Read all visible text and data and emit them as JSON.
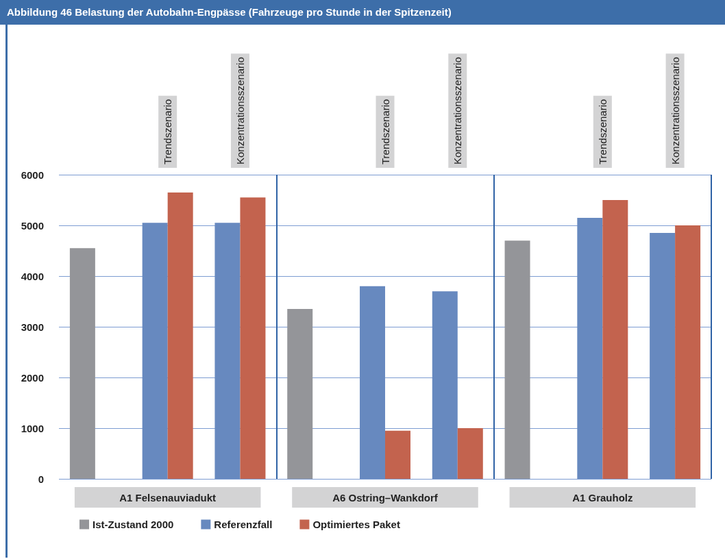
{
  "chart_data": {
    "type": "bar",
    "title": "Abbildung 46  Belastung der Autobahn-Engpässe (Fahrzeuge pro Stunde in der Spitzenzeit)",
    "categories": [
      null,
      "Trendszenario",
      "Konzentrationsszenario",
      null,
      "Trendszenario",
      "Konzentrationsszenario",
      null,
      "Trendszenario",
      "Konzentrationsszenario"
    ],
    "series": [
      {
        "name": "Ist-Zustand 2000",
        "color": "#949599",
        "values": [
          4550,
          null,
          null,
          3350,
          null,
          null,
          4700,
          null,
          null
        ]
      },
      {
        "name": "Referenzfall",
        "color": "#6789bf",
        "values": [
          null,
          5050,
          5050,
          null,
          3800,
          3700,
          null,
          5150,
          4850
        ]
      },
      {
        "name": "Optimiertes Paket",
        "color": "#c3634e",
        "values": [
          null,
          5650,
          5550,
          null,
          950,
          1000,
          null,
          5500,
          5000
        ]
      }
    ],
    "annotations": [
      "A1 Felsenauviadukt",
      "A6 Ostring–Wankdorf",
      "A1 Grauholz"
    ],
    "ylim": [
      0,
      6000
    ],
    "yticks": [
      0,
      1000,
      2000,
      3000,
      4000,
      5000,
      6000
    ],
    "grid": "y",
    "legend": "bottom left"
  }
}
